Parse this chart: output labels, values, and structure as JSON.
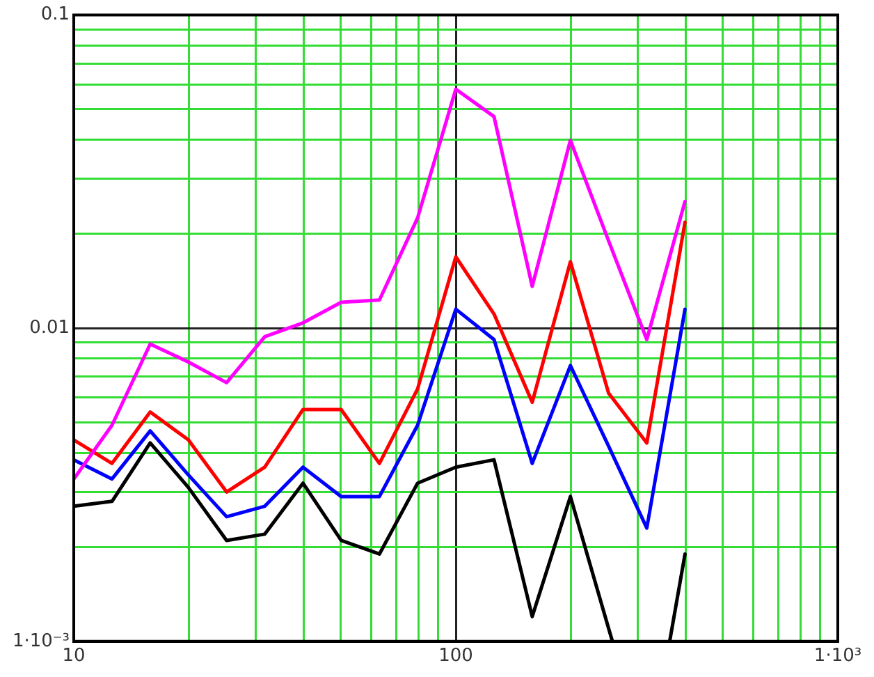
{
  "chart_data": {
    "type": "line",
    "log": "xy",
    "grid": true,
    "marker": "none",
    "line_style": "solid",
    "x": [
      10,
      12.59,
      15.85,
      19.95,
      25.12,
      31.62,
      39.81,
      50.12,
      63.1,
      79.43,
      100,
      125.9,
      158.5,
      199.5,
      251.2,
      316.2,
      398.1
    ],
    "xlim": [
      10,
      1000
    ],
    "ylim": [
      0.001,
      0.1
    ],
    "xticks": [
      10,
      {
        "value": 20,
        "label": null
      },
      {
        "value": 30,
        "label": null
      },
      {
        "value": 40,
        "label": null
      },
      {
        "value": 50,
        "label": null
      },
      {
        "value": 60,
        "label": null
      },
      {
        "value": 70,
        "label": null
      },
      {
        "value": 80,
        "label": null
      },
      {
        "value": 90,
        "label": null
      },
      100,
      {
        "value": 200,
        "label": null
      },
      {
        "value": 300,
        "label": null
      },
      {
        "value": 400,
        "label": null
      },
      {
        "value": 500,
        "label": null
      },
      {
        "value": 600,
        "label": null
      },
      {
        "value": 700,
        "label": null
      },
      {
        "value": 800,
        "label": null
      },
      {
        "value": 900,
        "label": null
      },
      {
        "value": 1000,
        "label": "1·10³"
      }
    ],
    "yticks": [
      {
        "value": 0.001,
        "label": "1·10⁻³"
      },
      {
        "value": 0.002,
        "label": null
      },
      {
        "value": 0.003,
        "label": null
      },
      {
        "value": 0.004,
        "label": null
      },
      {
        "value": 0.005,
        "label": null
      },
      {
        "value": 0.006,
        "label": null
      },
      {
        "value": 0.007,
        "label": null
      },
      {
        "value": 0.008,
        "label": null
      },
      {
        "value": 0.009,
        "label": null
      },
      0.01,
      {
        "value": 0.02,
        "label": null
      },
      {
        "value": 0.03,
        "label": null
      },
      {
        "value": 0.04,
        "label": null
      },
      {
        "value": 0.05,
        "label": null
      },
      {
        "value": 0.06,
        "label": null
      },
      {
        "value": 0.07,
        "label": null
      },
      {
        "value": 0.08,
        "label": null
      },
      {
        "value": 0.09,
        "label": null
      },
      0.1
    ],
    "series": [
      {
        "color": "#ff00ff",
        "values": [
          0.0033,
          0.0049,
          0.0089,
          0.0078,
          0.0067,
          0.0094,
          0.0104,
          0.0121,
          0.0123,
          0.0225,
          0.058,
          0.0474,
          0.0136,
          0.0398,
          0.019,
          0.0092,
          0.0254
        ]
      },
      {
        "color": "#ff0000",
        "values": [
          0.0044,
          0.0037,
          0.0054,
          0.0044,
          0.003,
          0.0036,
          0.0055,
          0.0055,
          0.0037,
          0.0064,
          0.0169,
          0.0111,
          0.0058,
          0.0163,
          0.0062,
          0.0043,
          0.0218
        ]
      },
      {
        "color": "#0000ff",
        "values": [
          0.0038,
          0.0033,
          0.0047,
          0.0034,
          0.0025,
          0.0027,
          0.0036,
          0.0029,
          0.0029,
          0.0049,
          0.0115,
          0.0092,
          0.0037,
          0.0076,
          0.0042,
          0.0023,
          0.0115
        ]
      },
      {
        "color": "#000000",
        "x": [
          10,
          12.59,
          15.85,
          19.95,
          25.12,
          31.62,
          39.81,
          50.12,
          63.1,
          79.43,
          100,
          125.9,
          158.5,
          199.5,
          251.2,
          257,
          316.2,
          363,
          398.1
        ],
        "values": [
          0.0027,
          0.0028,
          0.0043,
          0.0031,
          0.0021,
          0.0022,
          0.0032,
          0.0021,
          0.0019,
          0.0032,
          0.0036,
          0.0038,
          0.0012,
          0.0029,
          0.0011,
          0.001,
          null,
          0.001,
          0.0019
        ]
      }
    ]
  }
}
